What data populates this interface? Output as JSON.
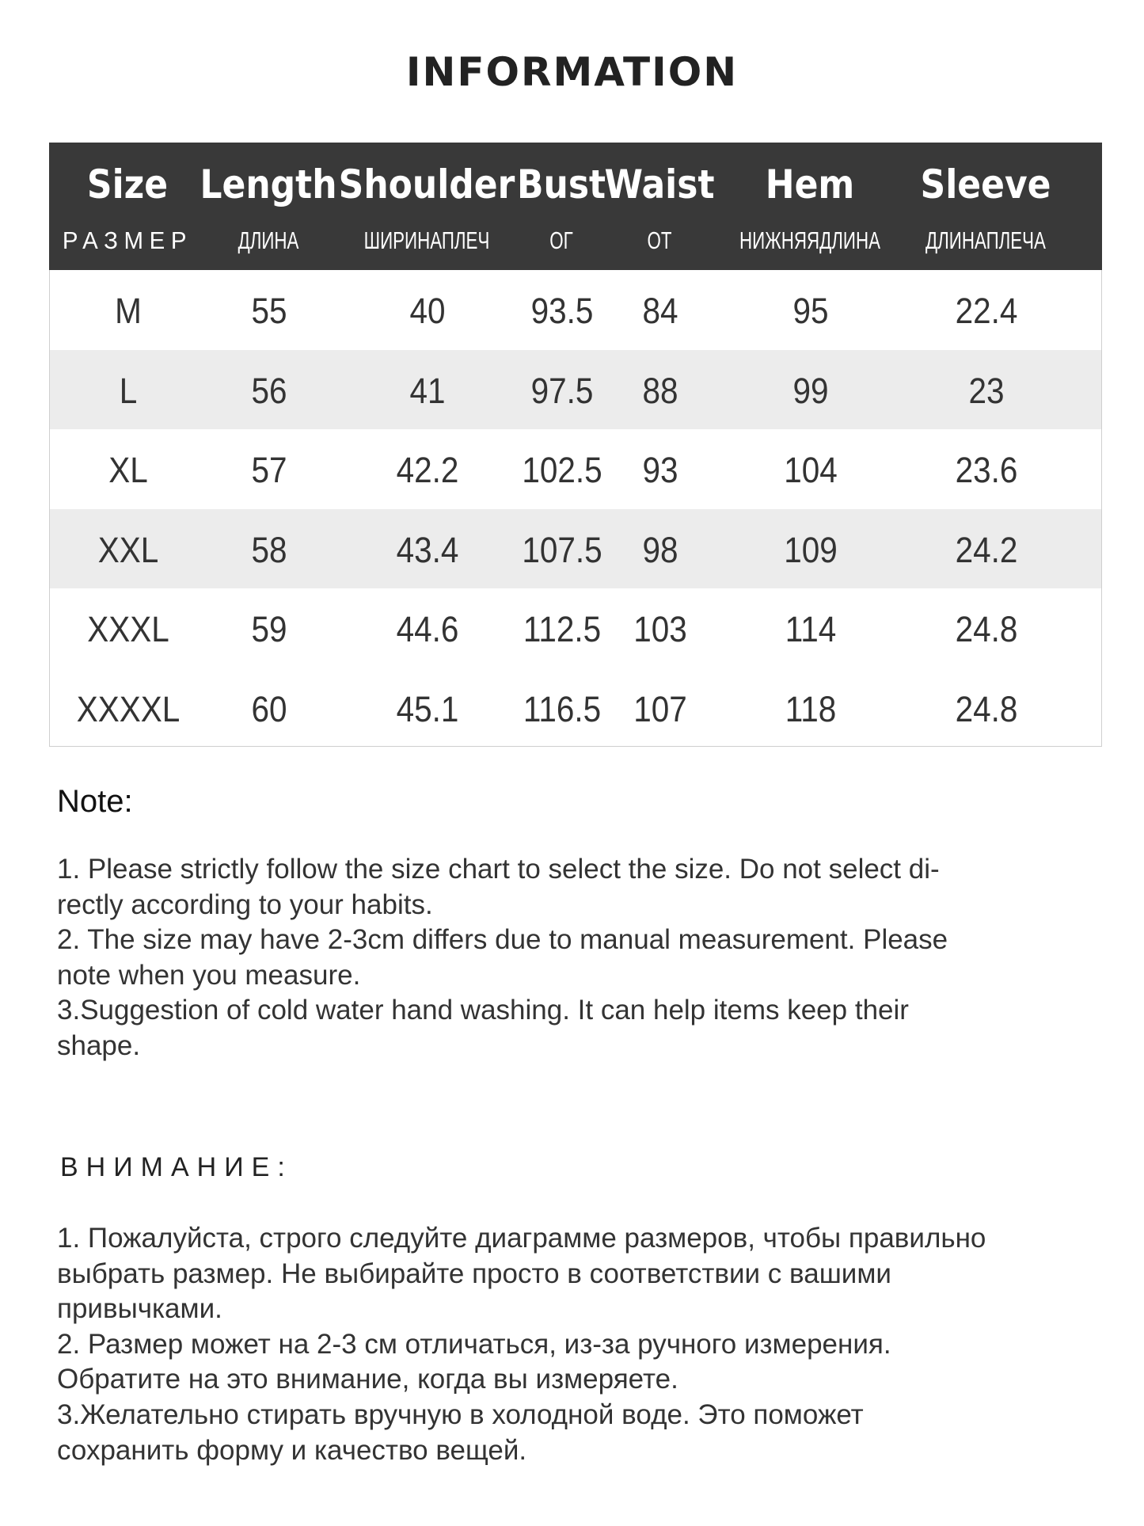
{
  "title": "INFORMATION",
  "table": {
    "headers": [
      {
        "en": "Size",
        "ru": "РАЗМЕР"
      },
      {
        "en": "Length",
        "ru": "ДЛИНА"
      },
      {
        "en": "Shoulder",
        "ru": "ШИРИНАПЛЕЧ"
      },
      {
        "en": "Bust",
        "ru": "ОГ"
      },
      {
        "en": "Waist",
        "ru": "ОТ"
      },
      {
        "en": "Hem",
        "ru": "НИЖНЯЯДЛИНА"
      },
      {
        "en": "Sleeve",
        "ru": "ДЛИНАПЛЕЧА"
      }
    ],
    "rows": [
      [
        "M",
        "55",
        "40",
        "93.5",
        "84",
        "95",
        "22.4"
      ],
      [
        "L",
        "56",
        "41",
        "97.5",
        "88",
        "99",
        "23"
      ],
      [
        "XL",
        "57",
        "42.2",
        "102.5",
        "93",
        "104",
        "23.6"
      ],
      [
        "XXL",
        "58",
        "43.4",
        "107.5",
        "98",
        "109",
        "24.2"
      ],
      [
        "XXXL",
        "59",
        "44.6",
        "112.5",
        "103",
        "114",
        "24.8"
      ],
      [
        "XXXXL",
        "60",
        "45.1",
        "116.5",
        "107",
        "118",
        "24.8"
      ]
    ],
    "header_bg": "#393939",
    "stripe_bg": "#ececec"
  },
  "note": {
    "heading": "Note:",
    "lines": [
      "1. Please strictly follow the size chart  to select the size. Do not select di-",
      "rectly according to your habits.",
      "2. The size may have 2-3cm differs due to manual measurement. Please",
      "note when you measure.",
      "3.Suggestion of cold water hand washing. It can help items keep their",
      "shape."
    ]
  },
  "note_ru": {
    "heading": "ВНИМАНИЕ:",
    "lines": [
      "1. Пожалуйста, строго следуйте диаграмме размеров, чтобы правильно",
      "выбрать размер. Не выбирайте просто в соответствии с вашими",
      "привычками.",
      "2. Размер может на 2-3 см отличаться, из-за ручного измерения.",
      "Обратите на это внимание, когда вы измеряете.",
      "3.Желательно стирать вручную в холодной воде. Это поможет",
      "сохранить форму и качество вещей."
    ]
  }
}
